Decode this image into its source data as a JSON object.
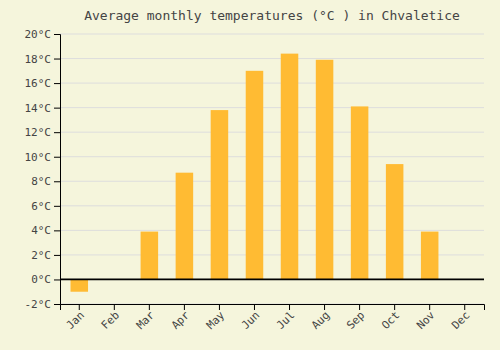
{
  "chart_data": {
    "type": "bar",
    "title": "Average monthly temperatures (°C ) in Chvaletice",
    "categories": [
      "Jan",
      "Feb",
      "Mar",
      "Apr",
      "May",
      "Jun",
      "Jul",
      "Aug",
      "Sep",
      "Oct",
      "Nov",
      "Dec"
    ],
    "values": [
      -1.0,
      0.0,
      3.9,
      8.7,
      13.8,
      17.0,
      18.4,
      17.9,
      14.1,
      9.4,
      3.9,
      0.0
    ],
    "color": "#FFBB33",
    "ylim": [
      -2,
      20
    ],
    "yticks": [
      {
        "value": 20,
        "label": "20°C"
      },
      {
        "value": 18,
        "label": "18°C"
      },
      {
        "value": 16,
        "label": "16°C"
      },
      {
        "value": 14,
        "label": "14°C"
      },
      {
        "value": 12,
        "label": "12°C"
      },
      {
        "value": 10,
        "label": "10°C"
      },
      {
        "value": 8,
        "label": "8°C"
      },
      {
        "value": 6,
        "label": "6°C"
      },
      {
        "value": 4,
        "label": "4°C"
      },
      {
        "value": 2,
        "label": "2°C"
      },
      {
        "value": 0,
        "label": "0°C"
      },
      {
        "value": -2,
        "label": "-2°C"
      }
    ],
    "grid": true
  }
}
